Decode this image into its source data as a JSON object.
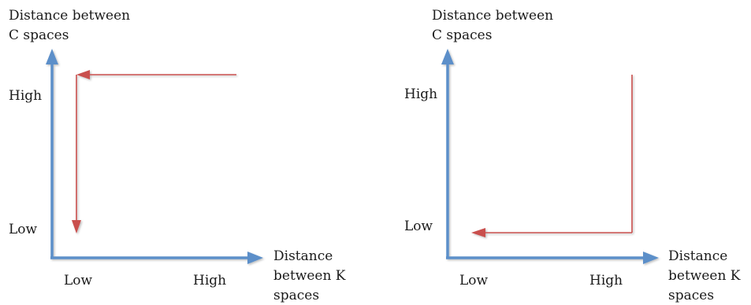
{
  "diagrams": [
    {
      "y_axis_title_line1": "Distance between",
      "y_axis_title_line2": "C spaces",
      "y_high": "High",
      "y_low": "Low",
      "x_low": "Low",
      "x_high": "High",
      "x_axis_title_line1": "Distance",
      "x_axis_title_line2": "between K",
      "x_axis_title_line3": "spaces"
    },
    {
      "y_axis_title_line1": "Distance between",
      "y_axis_title_line2": "C spaces",
      "y_high": "High",
      "y_low": "Low",
      "x_low": "Low",
      "x_high": "High",
      "x_axis_title_line1": "Distance",
      "x_axis_title_line2": "between K",
      "x_axis_title_line3": "spaces"
    }
  ],
  "colors": {
    "axis": "#5b8fc9",
    "arrow": "#c9504e",
    "text": "#1a1a1a"
  }
}
